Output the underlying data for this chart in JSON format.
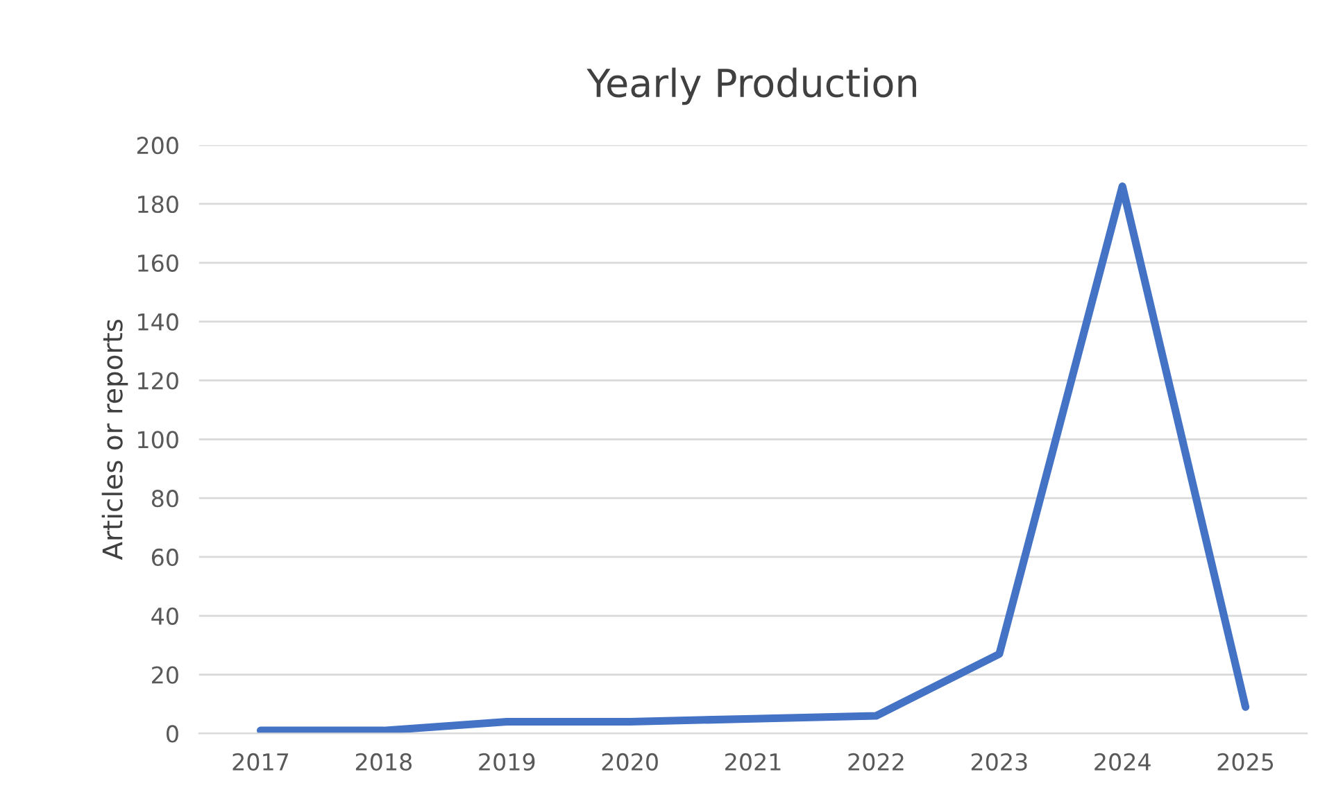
{
  "chart_data": {
    "type": "line",
    "title": "Yearly Production",
    "ylabel": "Articles or reports",
    "categories": [
      "2017",
      "2018",
      "2019",
      "2020",
      "2021",
      "2022",
      "2023",
      "2024",
      "2025"
    ],
    "series": [
      {
        "color": "#4472c4",
        "values": [
          1,
          1,
          4,
          4,
          5,
          6,
          27,
          186,
          9
        ]
      }
    ],
    "ylim": [
      0,
      200
    ],
    "yticks": [
      0,
      20,
      40,
      60,
      80,
      100,
      120,
      140,
      160,
      180,
      200
    ],
    "grid": "y",
    "legend": false,
    "marker": "none",
    "line_style": "solid"
  }
}
